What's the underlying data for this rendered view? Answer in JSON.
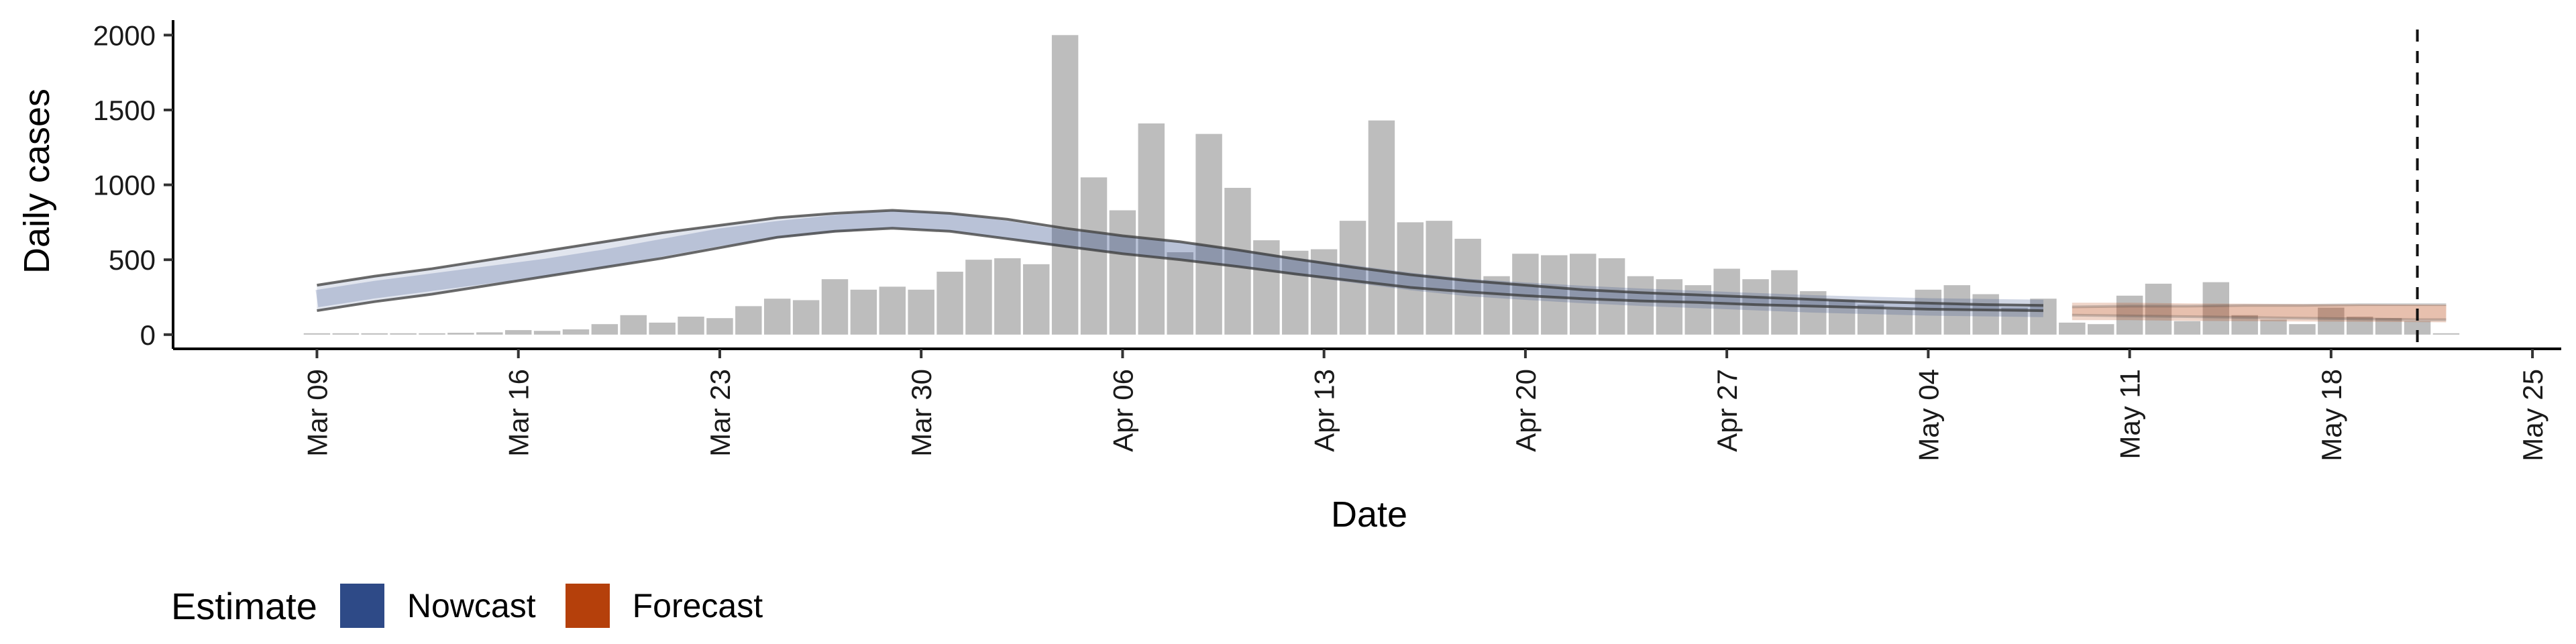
{
  "chart_data": {
    "type": "bar",
    "xlabel": "Date",
    "ylabel": "Daily cases",
    "ylim": [
      -95,
      2100
    ],
    "y_ticks": [
      0,
      500,
      1000,
      1500,
      2000
    ],
    "x_ticks": [
      "Mar 09",
      "Mar 16",
      "Mar 23",
      "Mar 30",
      "Apr 06",
      "Apr 13",
      "Apr 20",
      "Apr 27",
      "May 04",
      "May 11",
      "May 18",
      "May 25"
    ],
    "x_tick_dates": [
      "2020-03-09",
      "2020-03-16",
      "2020-03-23",
      "2020-03-30",
      "2020-04-06",
      "2020-04-13",
      "2020-04-20",
      "2020-04-27",
      "2020-05-04",
      "2020-05-11",
      "2020-05-18",
      "2020-05-25"
    ],
    "xlim": [
      "2020-03-04",
      "2020-05-26"
    ],
    "dates": [
      "2020-03-09",
      "2020-03-10",
      "2020-03-11",
      "2020-03-12",
      "2020-03-13",
      "2020-03-14",
      "2020-03-15",
      "2020-03-16",
      "2020-03-17",
      "2020-03-18",
      "2020-03-19",
      "2020-03-20",
      "2020-03-21",
      "2020-03-22",
      "2020-03-23",
      "2020-03-24",
      "2020-03-25",
      "2020-03-26",
      "2020-03-27",
      "2020-03-28",
      "2020-03-29",
      "2020-03-30",
      "2020-03-31",
      "2020-04-01",
      "2020-04-02",
      "2020-04-03",
      "2020-04-04",
      "2020-04-05",
      "2020-04-06",
      "2020-04-07",
      "2020-04-08",
      "2020-04-09",
      "2020-04-10",
      "2020-04-11",
      "2020-04-12",
      "2020-04-13",
      "2020-04-14",
      "2020-04-15",
      "2020-04-16",
      "2020-04-17",
      "2020-04-18",
      "2020-04-19",
      "2020-04-20",
      "2020-04-21",
      "2020-04-22",
      "2020-04-23",
      "2020-04-24",
      "2020-04-25",
      "2020-04-26",
      "2020-04-27",
      "2020-04-28",
      "2020-04-29",
      "2020-04-30",
      "2020-05-01",
      "2020-05-02",
      "2020-05-03",
      "2020-05-04",
      "2020-05-05",
      "2020-05-06",
      "2020-05-07",
      "2020-05-08",
      "2020-05-09",
      "2020-05-10",
      "2020-05-11",
      "2020-05-12",
      "2020-05-13",
      "2020-05-14",
      "2020-05-15",
      "2020-05-16",
      "2020-05-17",
      "2020-05-18",
      "2020-05-19",
      "2020-05-20",
      "2020-05-21",
      "2020-05-22"
    ],
    "values": [
      2,
      3,
      0,
      5,
      8,
      12,
      15,
      30,
      25,
      35,
      70,
      130,
      80,
      120,
      110,
      190,
      240,
      230,
      370,
      300,
      320,
      300,
      420,
      500,
      510,
      470,
      2000,
      1050,
      830,
      1410,
      550,
      1340,
      980,
      630,
      560,
      570,
      760,
      1430,
      750,
      760,
      640,
      390,
      540,
      530,
      540,
      510,
      390,
      370,
      330,
      440,
      370,
      430,
      290,
      230,
      200,
      170,
      300,
      330,
      270,
      180,
      240,
      80,
      70,
      260,
      340,
      90,
      350,
      130,
      100,
      70,
      180,
      120,
      110,
      90,
      0
    ],
    "series": [
      {
        "name": "Nowcast",
        "color": "#2e4a87",
        "dates": [
          "2020-03-09",
          "2020-03-11",
          "2020-03-13",
          "2020-03-15",
          "2020-03-17",
          "2020-03-19",
          "2020-03-21",
          "2020-03-23",
          "2020-03-25",
          "2020-03-27",
          "2020-03-29",
          "2020-03-31",
          "2020-04-02",
          "2020-04-04",
          "2020-04-06",
          "2020-04-08",
          "2020-04-10",
          "2020-04-12",
          "2020-04-14",
          "2020-04-16",
          "2020-04-18",
          "2020-04-20",
          "2020-04-22",
          "2020-04-24",
          "2020-04-26",
          "2020-04-28",
          "2020-04-30",
          "2020-05-02",
          "2020-05-04",
          "2020-05-06",
          "2020-05-08"
        ],
        "lower": [
          160,
          220,
          270,
          330,
          390,
          450,
          510,
          580,
          650,
          690,
          710,
          690,
          640,
          590,
          540,
          500,
          455,
          405,
          360,
          315,
          285,
          260,
          240,
          225,
          215,
          200,
          190,
          180,
          170,
          165,
          160
        ],
        "median": [
          240,
          300,
          350,
          400,
          450,
          510,
          580,
          650,
          700,
          740,
          770,
          750,
          700,
          640,
          600,
          560,
          510,
          455,
          405,
          355,
          315,
          290,
          268,
          250,
          235,
          220,
          205,
          195,
          185,
          180,
          175
        ],
        "upper": [
          330,
          390,
          440,
          500,
          560,
          620,
          680,
          730,
          780,
          810,
          830,
          810,
          770,
          710,
          660,
          620,
          565,
          505,
          450,
          400,
          360,
          330,
          300,
          280,
          265,
          250,
          235,
          220,
          210,
          200,
          195
        ]
      },
      {
        "name": "Forecast",
        "color": "#b5400b",
        "dates": [
          "2020-05-09",
          "2020-05-11",
          "2020-05-13",
          "2020-05-15",
          "2020-05-17",
          "2020-05-19",
          "2020-05-21",
          "2020-05-22"
        ],
        "lower": [
          130,
          125,
          120,
          115,
          110,
          105,
          100,
          100
        ],
        "median": [
          155,
          155,
          150,
          148,
          146,
          144,
          142,
          140
        ],
        "upper": [
          185,
          190,
          190,
          195,
          195,
          200,
          200,
          200
        ]
      }
    ],
    "vline_date": "2020-05-21",
    "legend": {
      "title": "Estimate",
      "position": "bottom-left",
      "items": [
        {
          "label": "Nowcast",
          "color": "#2e4a87"
        },
        {
          "label": "Forecast",
          "color": "#b5400b"
        }
      ]
    }
  }
}
